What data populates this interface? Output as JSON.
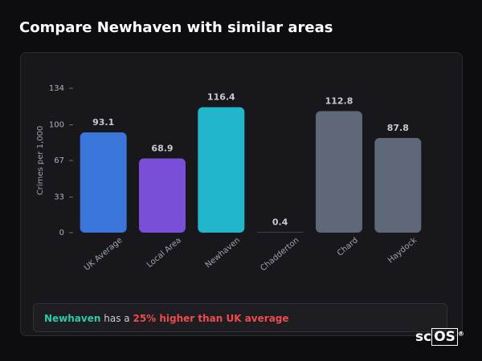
{
  "title": "Compare Newhaven with similar areas",
  "chart_data": {
    "type": "bar",
    "y_label": "Crimes per 1,000",
    "categories": [
      "UK Average",
      "Local Area",
      "Newhaven",
      "Chadderton",
      "Chard",
      "Haydock"
    ],
    "values": [
      93.1,
      68.9,
      116.4,
      0.4,
      112.8,
      87.8
    ],
    "colors": [
      "#3a76d9",
      "#7a4fd8",
      "#22b6cd",
      "#5e6878",
      "#5e6878",
      "#5e6878"
    ],
    "ylim": [
      0,
      134
    ],
    "yticks": [
      0,
      33,
      67,
      100,
      134
    ]
  },
  "summary": {
    "area": "Newhaven",
    "text": "has a",
    "highlight": "25% higher than UK average"
  },
  "logo": {
    "prefix": "sc",
    "boxed": "OS",
    "mark": "®"
  }
}
